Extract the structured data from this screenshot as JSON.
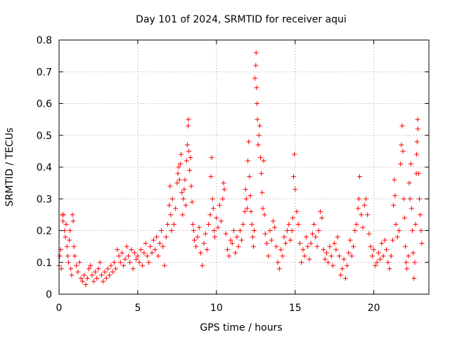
{
  "chart_data": {
    "type": "scatter",
    "title": "Day 101 of 2024, SRMTID for receiver aqui",
    "xlabel": "GPS time / hours",
    "ylabel": "SRMTID / TECUs",
    "xlim": [
      0,
      23.5
    ],
    "ylim": [
      0,
      0.8
    ],
    "xticks": [
      0,
      5,
      10,
      15,
      20
    ],
    "yticks": [
      0,
      0.1,
      0.2,
      0.3,
      0.4,
      0.5,
      0.6,
      0.7,
      0.8
    ],
    "grid": true,
    "marker": "+",
    "color": "#ff0000",
    "series": [
      {
        "name": "SRMTID",
        "points": [
          [
            0.0,
            0.09
          ],
          [
            0.05,
            0.12
          ],
          [
            0.1,
            0.14
          ],
          [
            0.15,
            0.08
          ],
          [
            0.2,
            0.25
          ],
          [
            0.25,
            0.23
          ],
          [
            0.3,
            0.25
          ],
          [
            0.35,
            0.2
          ],
          [
            0.4,
            0.18
          ],
          [
            0.45,
            0.22
          ],
          [
            0.5,
            0.15
          ],
          [
            0.55,
            0.12
          ],
          [
            0.6,
            0.1
          ],
          [
            0.65,
            0.17
          ],
          [
            0.7,
            0.2
          ],
          [
            0.75,
            0.08
          ],
          [
            0.8,
            0.06
          ],
          [
            0.85,
            0.25
          ],
          [
            0.9,
            0.23
          ],
          [
            0.95,
            0.15
          ],
          [
            1.0,
            0.12
          ],
          [
            1.1,
            0.09
          ],
          [
            1.2,
            0.07
          ],
          [
            1.3,
            0.1
          ],
          [
            1.4,
            0.05
          ],
          [
            1.5,
            0.04
          ],
          [
            1.6,
            0.06
          ],
          [
            1.7,
            0.03
          ],
          [
            1.8,
            0.05
          ],
          [
            1.9,
            0.08
          ],
          [
            2.0,
            0.09
          ],
          [
            2.1,
            0.06
          ],
          [
            2.2,
            0.04
          ],
          [
            2.3,
            0.07
          ],
          [
            2.4,
            0.05
          ],
          [
            2.5,
            0.08
          ],
          [
            2.6,
            0.1
          ],
          [
            2.7,
            0.06
          ],
          [
            2.8,
            0.04
          ],
          [
            2.9,
            0.07
          ],
          [
            3.0,
            0.05
          ],
          [
            3.1,
            0.08
          ],
          [
            3.2,
            0.06
          ],
          [
            3.3,
            0.09
          ],
          [
            3.4,
            0.07
          ],
          [
            3.5,
            0.1
          ],
          [
            3.6,
            0.08
          ],
          [
            3.7,
            0.14
          ],
          [
            3.8,
            0.12
          ],
          [
            3.9,
            0.1
          ],
          [
            4.0,
            0.13
          ],
          [
            4.1,
            0.09
          ],
          [
            4.2,
            0.11
          ],
          [
            4.3,
            0.15
          ],
          [
            4.4,
            0.12
          ],
          [
            4.5,
            0.1
          ],
          [
            4.6,
            0.14
          ],
          [
            4.7,
            0.08
          ],
          [
            4.8,
            0.13
          ],
          [
            4.9,
            0.11
          ],
          [
            5.0,
            0.12
          ],
          [
            5.1,
            0.1
          ],
          [
            5.2,
            0.14
          ],
          [
            5.3,
            0.09
          ],
          [
            5.4,
            0.13
          ],
          [
            5.5,
            0.16
          ],
          [
            5.6,
            0.12
          ],
          [
            5.7,
            0.1
          ],
          [
            5.8,
            0.15
          ],
          [
            5.9,
            0.13
          ],
          [
            6.0,
            0.17
          ],
          [
            6.1,
            0.14
          ],
          [
            6.2,
            0.18
          ],
          [
            6.3,
            0.12
          ],
          [
            6.4,
            0.16
          ],
          [
            6.5,
            0.2
          ],
          [
            6.6,
            0.15
          ],
          [
            6.7,
            0.09
          ],
          [
            6.8,
            0.18
          ],
          [
            6.9,
            0.22
          ],
          [
            7.0,
            0.28
          ],
          [
            7.05,
            0.34
          ],
          [
            7.1,
            0.25
          ],
          [
            7.15,
            0.2
          ],
          [
            7.2,
            0.3
          ],
          [
            7.3,
            0.22
          ],
          [
            7.4,
            0.27
          ],
          [
            7.5,
            0.35
          ],
          [
            7.55,
            0.38
          ],
          [
            7.6,
            0.4
          ],
          [
            7.65,
            0.36
          ],
          [
            7.7,
            0.41
          ],
          [
            7.75,
            0.44
          ],
          [
            7.8,
            0.32
          ],
          [
            7.85,
            0.25
          ],
          [
            7.9,
            0.3
          ],
          [
            7.95,
            0.33
          ],
          [
            8.0,
            0.36
          ],
          [
            8.05,
            0.28
          ],
          [
            8.1,
            0.42
          ],
          [
            8.15,
            0.47
          ],
          [
            8.2,
            0.53
          ],
          [
            8.22,
            0.55
          ],
          [
            8.25,
            0.45
          ],
          [
            8.3,
            0.39
          ],
          [
            8.35,
            0.43
          ],
          [
            8.4,
            0.34
          ],
          [
            8.45,
            0.29
          ],
          [
            8.5,
            0.22
          ],
          [
            8.55,
            0.2
          ],
          [
            8.6,
            0.17
          ],
          [
            8.7,
            0.15
          ],
          [
            8.8,
            0.18
          ],
          [
            8.9,
            0.21
          ],
          [
            9.0,
            0.13
          ],
          [
            9.1,
            0.09
          ],
          [
            9.2,
            0.16
          ],
          [
            9.3,
            0.19
          ],
          [
            9.4,
            0.14
          ],
          [
            9.5,
            0.22
          ],
          [
            9.6,
            0.25
          ],
          [
            9.65,
            0.37
          ],
          [
            9.7,
            0.43
          ],
          [
            9.75,
            0.3
          ],
          [
            9.8,
            0.27
          ],
          [
            9.85,
            0.2
          ],
          [
            9.9,
            0.18
          ],
          [
            10.0,
            0.24
          ],
          [
            10.1,
            0.21
          ],
          [
            10.2,
            0.28
          ],
          [
            10.3,
            0.23
          ],
          [
            10.4,
            0.3
          ],
          [
            10.45,
            0.35
          ],
          [
            10.5,
            0.33
          ],
          [
            10.6,
            0.19
          ],
          [
            10.7,
            0.14
          ],
          [
            10.8,
            0.12
          ],
          [
            10.9,
            0.17
          ],
          [
            11.0,
            0.16
          ],
          [
            11.1,
            0.2
          ],
          [
            11.2,
            0.13
          ],
          [
            11.3,
            0.18
          ],
          [
            11.4,
            0.15
          ],
          [
            11.5,
            0.2
          ],
          [
            11.6,
            0.17
          ],
          [
            11.7,
            0.22
          ],
          [
            11.8,
            0.26
          ],
          [
            11.85,
            0.33
          ],
          [
            11.9,
            0.3
          ],
          [
            11.95,
            0.27
          ],
          [
            12.0,
            0.42
          ],
          [
            12.05,
            0.48
          ],
          [
            12.1,
            0.37
          ],
          [
            12.15,
            0.31
          ],
          [
            12.2,
            0.26
          ],
          [
            12.25,
            0.22
          ],
          [
            12.3,
            0.18
          ],
          [
            12.35,
            0.15
          ],
          [
            12.4,
            0.2
          ],
          [
            12.45,
            0.68
          ],
          [
            12.5,
            0.72
          ],
          [
            12.52,
            0.76
          ],
          [
            12.55,
            0.65
          ],
          [
            12.58,
            0.6
          ],
          [
            12.6,
            0.55
          ],
          [
            12.65,
            0.47
          ],
          [
            12.7,
            0.5
          ],
          [
            12.75,
            0.53
          ],
          [
            12.8,
            0.43
          ],
          [
            12.85,
            0.38
          ],
          [
            12.9,
            0.32
          ],
          [
            12.95,
            0.27
          ],
          [
            13.0,
            0.42
          ],
          [
            13.05,
            0.25
          ],
          [
            13.1,
            0.19
          ],
          [
            13.2,
            0.16
          ],
          [
            13.3,
            0.12
          ],
          [
            13.4,
            0.2
          ],
          [
            13.5,
            0.17
          ],
          [
            13.6,
            0.23
          ],
          [
            13.7,
            0.21
          ],
          [
            13.8,
            0.15
          ],
          [
            13.9,
            0.1
          ],
          [
            14.0,
            0.08
          ],
          [
            14.1,
            0.14
          ],
          [
            14.2,
            0.12
          ],
          [
            14.3,
            0.18
          ],
          [
            14.4,
            0.16
          ],
          [
            14.5,
            0.2
          ],
          [
            14.6,
            0.22
          ],
          [
            14.7,
            0.17
          ],
          [
            14.8,
            0.2
          ],
          [
            14.85,
            0.24
          ],
          [
            14.9,
            0.37
          ],
          [
            14.95,
            0.44
          ],
          [
            15.0,
            0.33
          ],
          [
            15.1,
            0.26
          ],
          [
            15.2,
            0.22
          ],
          [
            15.3,
            0.16
          ],
          [
            15.4,
            0.1
          ],
          [
            15.5,
            0.14
          ],
          [
            15.6,
            0.12
          ],
          [
            15.7,
            0.18
          ],
          [
            15.8,
            0.15
          ],
          [
            15.9,
            0.11
          ],
          [
            16.0,
            0.16
          ],
          [
            16.1,
            0.19
          ],
          [
            16.2,
            0.22
          ],
          [
            16.3,
            0.18
          ],
          [
            16.4,
            0.15
          ],
          [
            16.5,
            0.2
          ],
          [
            16.6,
            0.26
          ],
          [
            16.7,
            0.24
          ],
          [
            16.8,
            0.14
          ],
          [
            16.9,
            0.11
          ],
          [
            17.0,
            0.13
          ],
          [
            17.1,
            0.1
          ],
          [
            17.2,
            0.15
          ],
          [
            17.3,
            0.12
          ],
          [
            17.4,
            0.09
          ],
          [
            17.5,
            0.16
          ],
          [
            17.6,
            0.14
          ],
          [
            17.7,
            0.18
          ],
          [
            17.8,
            0.12
          ],
          [
            17.9,
            0.06
          ],
          [
            18.0,
            0.08
          ],
          [
            18.1,
            0.11
          ],
          [
            18.2,
            0.05
          ],
          [
            18.3,
            0.09
          ],
          [
            18.4,
            0.13
          ],
          [
            18.5,
            0.17
          ],
          [
            18.6,
            0.12
          ],
          [
            18.7,
            0.15
          ],
          [
            18.8,
            0.2
          ],
          [
            18.9,
            0.22
          ],
          [
            19.0,
            0.27
          ],
          [
            19.05,
            0.3
          ],
          [
            19.1,
            0.37
          ],
          [
            19.2,
            0.25
          ],
          [
            19.3,
            0.21
          ],
          [
            19.4,
            0.28
          ],
          [
            19.5,
            0.3
          ],
          [
            19.6,
            0.25
          ],
          [
            19.7,
            0.19
          ],
          [
            19.8,
            0.15
          ],
          [
            19.9,
            0.12
          ],
          [
            20.0,
            0.14
          ],
          [
            20.1,
            0.09
          ],
          [
            20.2,
            0.1
          ],
          [
            20.3,
            0.13
          ],
          [
            20.4,
            0.11
          ],
          [
            20.5,
            0.16
          ],
          [
            20.6,
            0.12
          ],
          [
            20.7,
            0.17
          ],
          [
            20.8,
            0.14
          ],
          [
            20.9,
            0.1
          ],
          [
            21.0,
            0.08
          ],
          [
            21.1,
            0.12
          ],
          [
            21.2,
            0.17
          ],
          [
            21.25,
            0.28
          ],
          [
            21.3,
            0.36
          ],
          [
            21.35,
            0.31
          ],
          [
            21.4,
            0.22
          ],
          [
            21.5,
            0.18
          ],
          [
            21.6,
            0.2
          ],
          [
            21.7,
            0.41
          ],
          [
            21.75,
            0.47
          ],
          [
            21.8,
            0.53
          ],
          [
            21.85,
            0.45
          ],
          [
            21.9,
            0.3
          ],
          [
            21.95,
            0.24
          ],
          [
            22.0,
            0.15
          ],
          [
            22.05,
            0.1
          ],
          [
            22.1,
            0.08
          ],
          [
            22.2,
            0.12
          ],
          [
            22.25,
            0.35
          ],
          [
            22.3,
            0.3
          ],
          [
            22.35,
            0.41
          ],
          [
            22.4,
            0.27
          ],
          [
            22.45,
            0.2
          ],
          [
            22.5,
            0.13
          ],
          [
            22.55,
            0.05
          ],
          [
            22.6,
            0.1
          ],
          [
            22.65,
            0.22
          ],
          [
            22.7,
            0.38
          ],
          [
            22.72,
            0.44
          ],
          [
            22.75,
            0.48
          ],
          [
            22.78,
            0.55
          ],
          [
            22.8,
            0.52
          ],
          [
            22.85,
            0.38
          ],
          [
            22.9,
            0.3
          ],
          [
            22.95,
            0.25
          ],
          [
            23.0,
            0.2
          ],
          [
            23.05,
            0.16
          ]
        ]
      }
    ]
  }
}
